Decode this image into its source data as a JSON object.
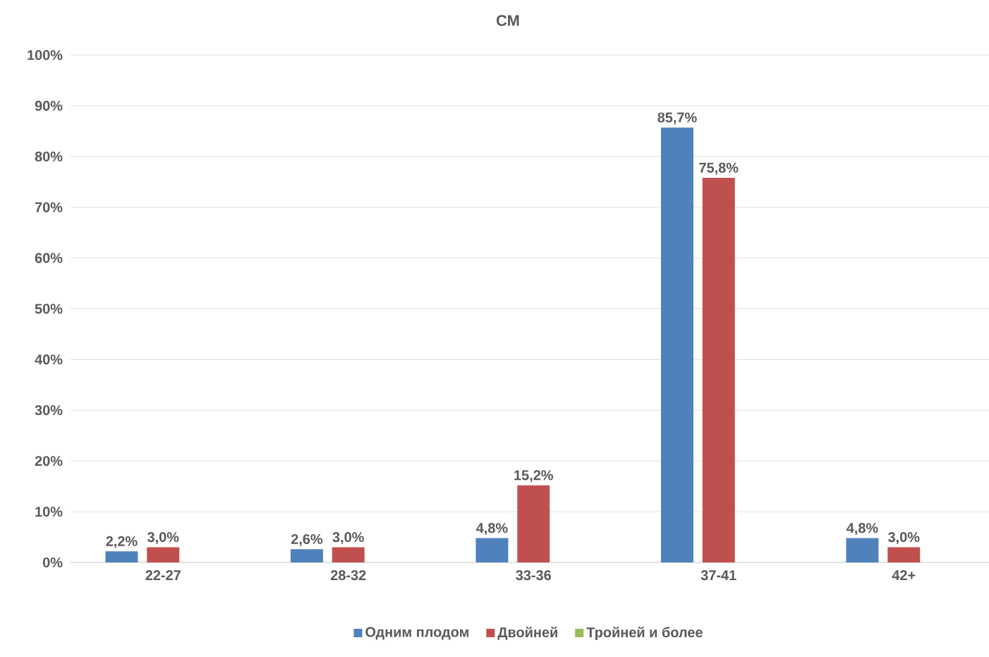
{
  "chart_data": {
    "type": "bar",
    "title": "СМ",
    "categories": [
      "22-27",
      "28-32",
      "33-36",
      "37-41",
      "42+"
    ],
    "series": [
      {
        "name": "Одним плодом",
        "color": "#4f81bd",
        "values": [
          2.2,
          2.6,
          4.8,
          85.7,
          4.8
        ],
        "value_labels": [
          "2,2%",
          "2,6%",
          "4,8%",
          "85,7%",
          "4,8%"
        ]
      },
      {
        "name": "Двойней",
        "color": "#c0504d",
        "values": [
          3.0,
          3.0,
          15.2,
          75.8,
          3.0
        ],
        "value_labels": [
          "3,0%",
          "3,0%",
          "15,2%",
          "75,8%",
          "3,0%"
        ]
      },
      {
        "name": "Тройней и более",
        "color": "#9bbb59",
        "values": [
          null,
          null,
          null,
          null,
          null
        ]
      }
    ],
    "ylim": [
      0,
      100
    ],
    "yticks": [
      {
        "value": 0,
        "label": "0%"
      },
      {
        "value": 10,
        "label": "10%"
      },
      {
        "value": 20,
        "label": "20%"
      },
      {
        "value": 30,
        "label": "30%"
      },
      {
        "value": 40,
        "label": "40%"
      },
      {
        "value": 50,
        "label": "50%"
      },
      {
        "value": 60,
        "label": "60%"
      },
      {
        "value": 70,
        "label": "70%"
      },
      {
        "value": 80,
        "label": "80%"
      },
      {
        "value": 90,
        "label": "90%"
      },
      {
        "value": 100,
        "label": "100%"
      }
    ],
    "grid": "y",
    "legend": "bottom"
  }
}
